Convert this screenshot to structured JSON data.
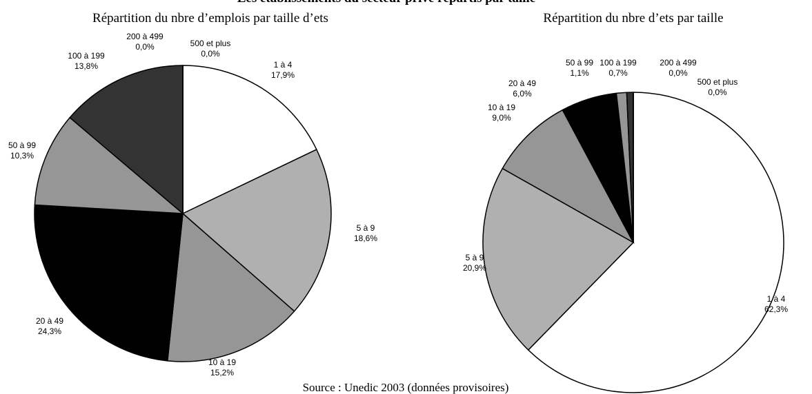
{
  "title": "Les établissements du secteur privé répartis par taille",
  "source": "Source : Unedic 2003 (données provisoires)",
  "chart_data": [
    {
      "type": "pie",
      "title": "Répartition du nbre d’emplois par taille d’ets",
      "categories": [
        "1 à 4",
        "5 à 9",
        "10 à 19",
        "20 à 49",
        "50 à 99",
        "100 à 199",
        "200 à 499",
        "500 et plus"
      ],
      "values": [
        17.9,
        18.6,
        15.2,
        24.3,
        10.3,
        13.8,
        0.0,
        0.0
      ],
      "value_labels": [
        "17,9%",
        "18,6%",
        "15,2%",
        "24,3%",
        "10,3%",
        "13,8%",
        "0,0%",
        "0,0%"
      ],
      "colors": [
        "#ffffff",
        "#b0b0b0",
        "#969696",
        "#000000",
        "#969696",
        "#333333",
        "#555555",
        "#222222"
      ]
    },
    {
      "type": "pie",
      "title": "Répartition du nbre d’ets par taille",
      "categories": [
        "1 à 4",
        "5 à 9",
        "10 à 19",
        "20 à 49",
        "50 à 99",
        "100 à 199",
        "200 à 499",
        "500 et plus"
      ],
      "values": [
        62.3,
        20.9,
        9.0,
        6.0,
        1.1,
        0.7,
        0.0,
        0.0
      ],
      "value_labels": [
        "62,3%",
        "20,9%",
        "9,0%",
        "6,0%",
        "1,1%",
        "0,7%",
        "0,0%",
        "0,0%"
      ],
      "colors": [
        "#ffffff",
        "#b0b0b0",
        "#969696",
        "#000000",
        "#969696",
        "#333333",
        "#555555",
        "#222222"
      ]
    }
  ]
}
